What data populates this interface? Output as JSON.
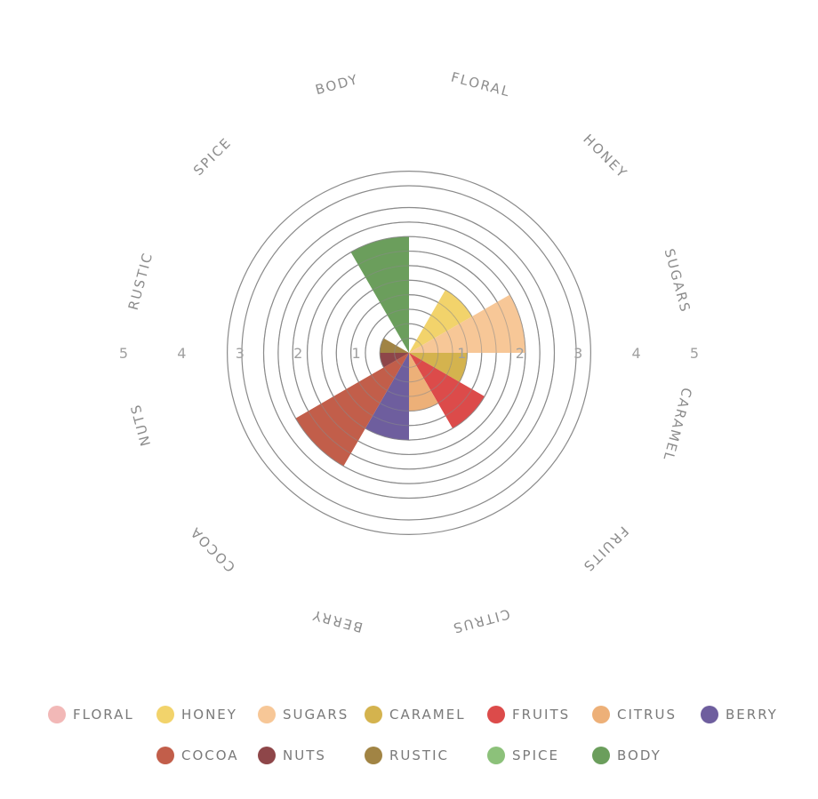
{
  "chart_data": {
    "type": "polar-area",
    "categories": [
      "FLORAL",
      "HONEY",
      "SUGARS",
      "CARAMEL",
      "FRUITS",
      "CITRUS",
      "BERRY",
      "COCOA",
      "NUTS",
      "RUSTIC",
      "SPICE",
      "BODY"
    ],
    "values": [
      0,
      2.5,
      4,
      2,
      3,
      2,
      3,
      4.5,
      1,
      1,
      0,
      4
    ],
    "colors": [
      "#f2b8b7",
      "#f2d36b",
      "#f7c797",
      "#d4b34e",
      "#dc4b4a",
      "#edb078",
      "#6e5e9e",
      "#c25e4a",
      "#8e4649",
      "#a18444",
      "#8cc17a",
      "#6b9e5c"
    ],
    "rmax": 5,
    "ticks": [
      "1",
      "2",
      "3",
      "4",
      "5"
    ],
    "grid": true,
    "legend_position": "bottom"
  }
}
